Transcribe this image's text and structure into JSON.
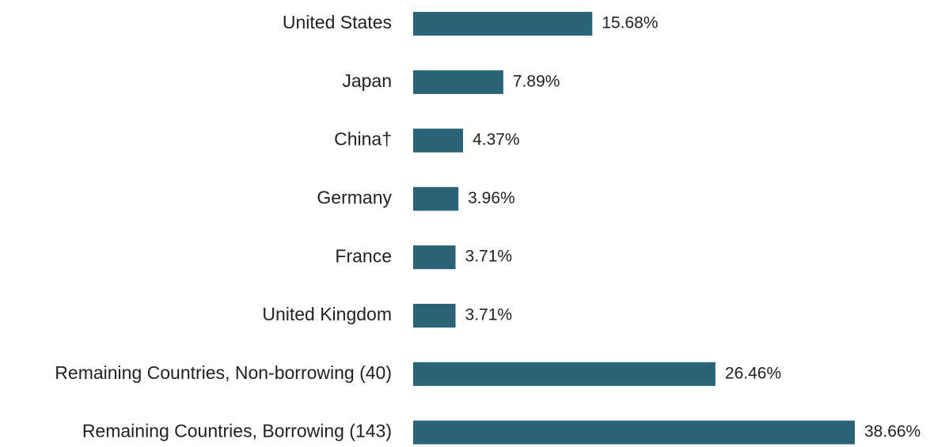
{
  "chart_data": {
    "type": "bar",
    "orientation": "horizontal",
    "categories": [
      "United States",
      "Japan",
      "China†",
      "Germany",
      "France",
      "United Kingdom",
      "Remaining Countries, Non-borrowing (40)",
      "Remaining Countries, Borrowing (143)"
    ],
    "values": [
      15.68,
      7.89,
      4.37,
      3.96,
      3.71,
      3.71,
      26.46,
      38.66
    ],
    "value_labels": [
      "15.68%",
      "7.89%",
      "4.37%",
      "3.96%",
      "3.71%",
      "3.71%",
      "26.46%",
      "38.66%"
    ],
    "color": "#2b6478"
  }
}
